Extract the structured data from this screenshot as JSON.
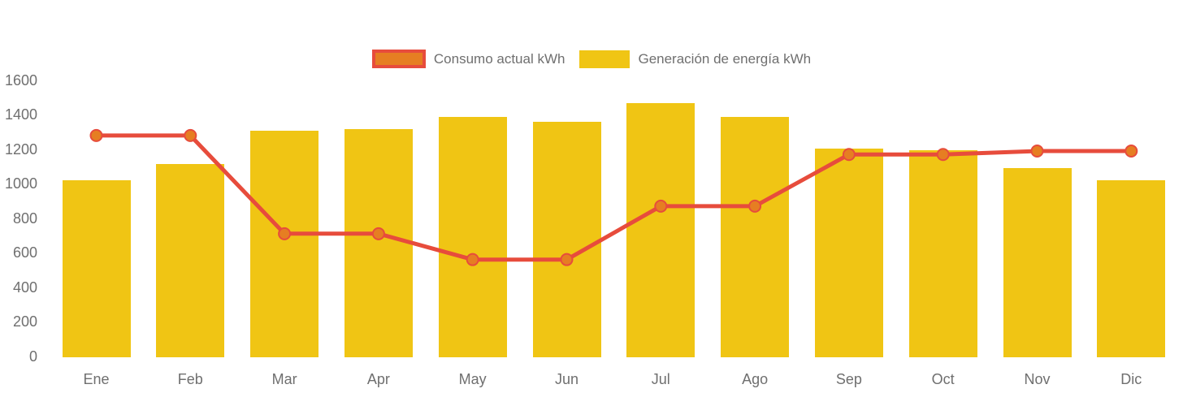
{
  "legend": {
    "items": [
      {
        "label": "Consumo actual kWh",
        "swatch_fill": "#e67e22",
        "swatch_border": "#e74c3c",
        "series_type": "line"
      },
      {
        "label": "Generación de energía kWh",
        "swatch_fill": "#f0c514",
        "series_type": "bar"
      }
    ]
  },
  "chart_data": {
    "type": "bar",
    "subtype": "bar-with-line-overlay",
    "title": "",
    "xlabel": "",
    "ylabel": "",
    "categories": [
      "Ene",
      "Feb",
      "Mar",
      "Apr",
      "May",
      "Jun",
      "Jul",
      "Ago",
      "Sep",
      "Oct",
      "Nov",
      "Dic"
    ],
    "series": [
      {
        "name": "Generación de energía kWh",
        "type": "bar",
        "color": "#f0c514",
        "values": [
          1020,
          1115,
          1310,
          1315,
          1390,
          1360,
          1470,
          1390,
          1205,
          1195,
          1090,
          1020
        ]
      },
      {
        "name": "Consumo actual kWh",
        "type": "line",
        "color": "#e74c3c",
        "marker_color": "#e67e22",
        "values": [
          1280,
          1280,
          710,
          710,
          560,
          560,
          870,
          870,
          1170,
          1170,
          1190,
          1190
        ]
      }
    ],
    "yticks": [
      0,
      200,
      400,
      600,
      800,
      1000,
      1200,
      1400,
      1600
    ],
    "ylim": [
      0,
      1600
    ],
    "grid": false,
    "legend_position": "top-center",
    "axis_text_color": "#6f6f6f",
    "background": "#ffffff"
  }
}
